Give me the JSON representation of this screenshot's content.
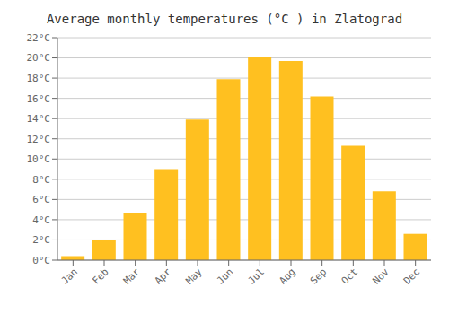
{
  "chart_data": {
    "type": "bar",
    "title": "Average monthly temperatures (°C ) in Zlatograd",
    "categories": [
      "Jan",
      "Feb",
      "Mar",
      "Apr",
      "May",
      "Jun",
      "Jul",
      "Aug",
      "Sep",
      "Oct",
      "Nov",
      "Dec"
    ],
    "values": [
      0.4,
      2.0,
      4.7,
      9.0,
      13.9,
      17.9,
      20.1,
      19.7,
      16.2,
      11.3,
      6.8,
      2.6
    ],
    "color": "#FFC020",
    "ylim": [
      0,
      22
    ],
    "yticks": [
      {
        "value": 0,
        "label": "0°C"
      },
      {
        "value": 2,
        "label": "2°C"
      },
      {
        "value": 4,
        "label": "4°C"
      },
      {
        "value": 6,
        "label": "6°C"
      },
      {
        "value": 8,
        "label": "8°C"
      },
      {
        "value": 10,
        "label": "10°C"
      },
      {
        "value": 12,
        "label": "12°C"
      },
      {
        "value": 14,
        "label": "14°C"
      },
      {
        "value": 16,
        "label": "16°C"
      },
      {
        "value": 18,
        "label": "18°C"
      },
      {
        "value": 20,
        "label": "20°C"
      },
      {
        "value": 22,
        "label": "22°C"
      }
    ],
    "grid": true
  }
}
